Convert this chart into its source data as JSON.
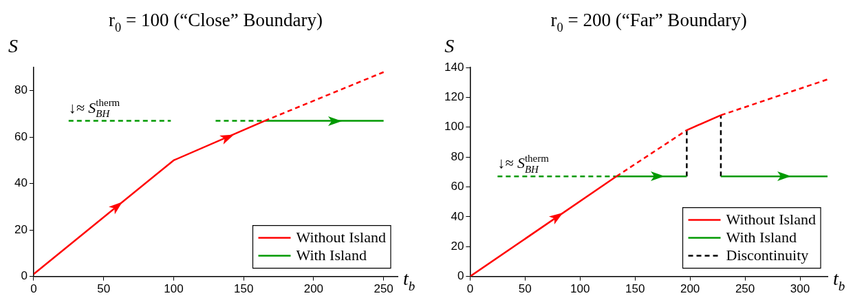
{
  "chart_data": [
    {
      "type": "line",
      "title": "r$_{0}$ = 100 (“Close” Boundary)",
      "xlabel": "t$_{b}$",
      "ylabel": "S",
      "xlim": [
        0,
        260
      ],
      "ylim": [
        0,
        90
      ],
      "xticks": [
        0,
        50,
        100,
        150,
        200,
        250
      ],
      "yticks": [
        0,
        20,
        40,
        60,
        80
      ],
      "legend": "bottom right",
      "marker": "none",
      "grid": false,
      "annotations": [
        {
          "text": "↓≈ S$_{BH}$$^{therm}$",
          "x": 25,
          "y": 67
        }
      ],
      "series": [
        {
          "name": "Without Island",
          "color": "#ff0000",
          "line_style": [
            "solid",
            "solid",
            "dashed"
          ],
          "x": [
            0,
            100,
            165,
            250
          ],
          "values": [
            1,
            50,
            67,
            88
          ]
        },
        {
          "name": "With Island",
          "color": "#009900",
          "line_style": [
            "dashed",
            null,
            null,
            "dashed",
            "solid"
          ],
          "x": [
            25,
            98,
            110,
            130,
            165,
            250
          ],
          "values": [
            67,
            67,
            null,
            67,
            67,
            67
          ]
        }
      ]
    },
    {
      "type": "line",
      "title": "r$_{0}$ = 200 (“Far” Boundary)",
      "xlabel": "t$_{b}$",
      "ylabel": "S",
      "xlim": [
        0,
        325
      ],
      "ylim": [
        0,
        140
      ],
      "xticks": [
        0,
        50,
        100,
        150,
        200,
        250,
        300
      ],
      "yticks": [
        0,
        20,
        40,
        60,
        80,
        100,
        120,
        140
      ],
      "legend": "bottom right",
      "marker": "none",
      "grid": false,
      "annotations": [
        {
          "text": "↓≈ S$_{BH}$$^{therm}$",
          "x": 25,
          "y": 67
        }
      ],
      "series": [
        {
          "name": "Without Island",
          "color": "#ff0000",
          "line_style": [
            "solid",
            "dashed",
            "solid",
            "dashed"
          ],
          "x": [
            0,
            133,
            197,
            228,
            325
          ],
          "values": [
            0,
            67,
            98,
            108,
            132
          ]
        },
        {
          "name": "With Island",
          "color": "#009900",
          "line_style": [
            "dashed",
            "solid",
            null,
            null,
            "solid"
          ],
          "x": [
            25,
            133,
            197,
            210,
            228,
            325
          ],
          "values": [
            67,
            67,
            67,
            null,
            67,
            67
          ]
        },
        {
          "name": "Discontinuity",
          "color": "#000000",
          "line_style": "dashed",
          "x": [
            197,
            197,
            210,
            228,
            228
          ],
          "values": [
            67,
            98,
            null,
            67,
            108
          ]
        }
      ]
    }
  ]
}
